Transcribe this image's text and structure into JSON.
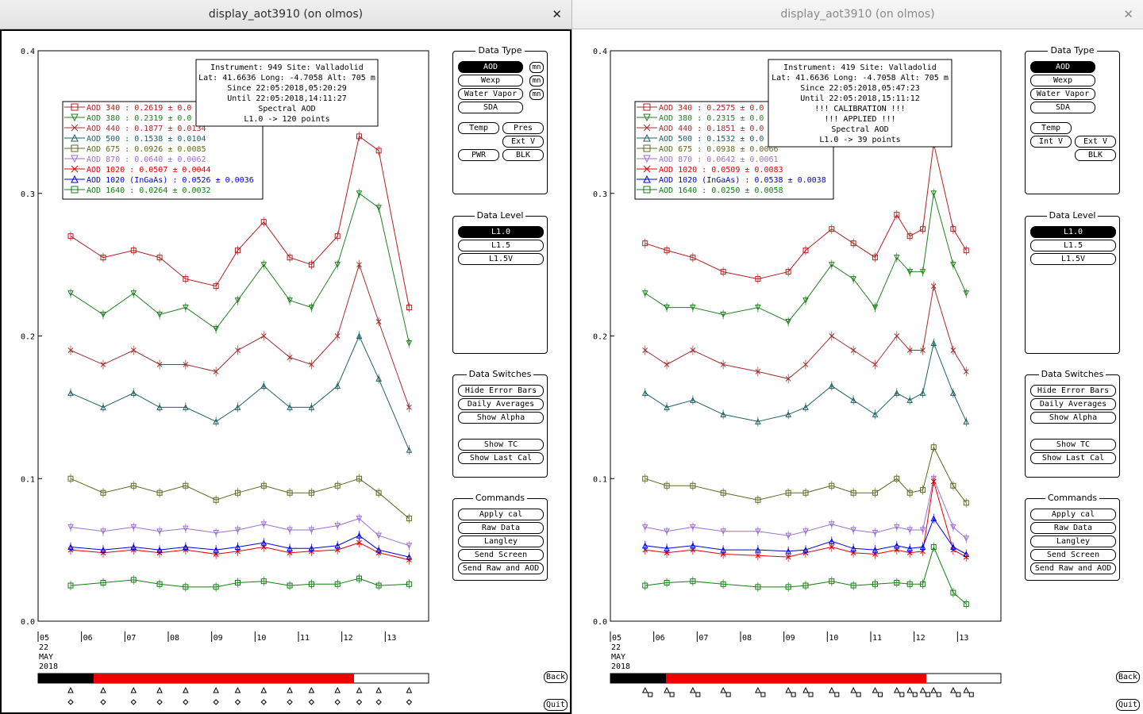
{
  "windows": [
    {
      "title": "display_aot3910 (on olmos)",
      "info_lines": [
        "Instrument: 949 Site: Valladolid",
        "Lat: 41.6636 Long: -4.7058 Alt: 705 m",
        "Since 22:05:2018,05:20:29",
        "Until 22:05:2018,14:11:27",
        "Spectral AOD",
        "L1.0 -> 120 points"
      ],
      "legend": [
        {
          "label": "AOD 340   : 0.2619 ± 0.0",
          "color": "#b02020",
          "marker": "square"
        },
        {
          "label": "AOD 380   : 0.2319 ± 0.0",
          "color": "#208020",
          "marker": "tri-down"
        },
        {
          "label": "AOD 440   : 0.1877 ± 0.0134",
          "color": "#a03030",
          "marker": "x"
        },
        {
          "label": "AOD 500   : 0.1538 ± 0.0104",
          "color": "#206060",
          "marker": "tri-up"
        },
        {
          "label": "AOD 675   : 0.0926 ± 0.0085",
          "color": "#5a6a20",
          "marker": "square"
        },
        {
          "label": "AOD 870   : 0.0640 ± 0.0062",
          "color": "#9a70d0",
          "marker": "tri-down"
        },
        {
          "label": "AOD 1020  : 0.0507 ± 0.0044",
          "color": "#e00000",
          "marker": "x"
        },
        {
          "label": "AOD 1020 (InGaAs)  : 0.0526 ± 0.0036",
          "color": "#0000e0",
          "marker": "tri-up"
        },
        {
          "label": "AOD 1640  : 0.0264 ± 0.0032",
          "color": "#108010",
          "marker": "square"
        }
      ],
      "mn_label": "mn"
    },
    {
      "title": "display_aot3910 (on olmos)",
      "info_lines": [
        "Instrument: 419 Site: Valladolid",
        "Lat: 41.6636 Long: -4.7058 Alt: 705 m",
        "Since 22:05:2018,05:47:23",
        "Until 22:05:2018,15:11:12",
        "!!! CALIBRATION !!!",
        "!!!  APPLIED  !!!",
        "Spectral AOD",
        "L1.0 -> 39 points"
      ],
      "legend": [
        {
          "label": "AOD 340   : 0.2575 ± 0.0",
          "color": "#b02020",
          "marker": "square"
        },
        {
          "label": "AOD 380   : 0.2315 ± 0.0",
          "color": "#208020",
          "marker": "tri-down"
        },
        {
          "label": "AOD 440   : 0.1851 ± 0.0",
          "color": "#a03030",
          "marker": "x"
        },
        {
          "label": "AOD 500   : 0.1532 ± 0.0",
          "color": "#206060",
          "marker": "tri-up"
        },
        {
          "label": "AOD 675   : 0.0938 ± 0.0066",
          "color": "#5a6a20",
          "marker": "square"
        },
        {
          "label": "AOD 870   : 0.0642 ± 0.0061",
          "color": "#9a70d0",
          "marker": "tri-down"
        },
        {
          "label": "AOD 1020  : 0.0509 ± 0.0083",
          "color": "#e00000",
          "marker": "x"
        },
        {
          "label": "AOD 1020 (InGaAs)  : 0.0538 ± 0.0038",
          "color": "#0000e0",
          "marker": "tri-up"
        },
        {
          "label": "AOD 1640  : 0.0250 ± 0.0058",
          "color": "#108010",
          "marker": "square"
        }
      ],
      "mn_label": ""
    }
  ],
  "axes": {
    "y_ticks": [
      "0.4",
      "0.3",
      "0.2",
      "0.1",
      "0.0"
    ],
    "x_ticks": [
      "05",
      "06",
      "07",
      "08",
      "09",
      "10",
      "11",
      "12",
      "13"
    ],
    "date_lines": [
      "22",
      "MAY",
      "2018"
    ]
  },
  "controls": {
    "data_type": {
      "title": "Data Type",
      "buttons": [
        "AOD",
        "Wexp",
        "Water Vapor",
        "SDA",
        "Temp",
        "Pres",
        "Ext V",
        "PWR",
        "BLK",
        "Int V"
      ]
    },
    "data_level": {
      "title": "Data Level",
      "buttons": [
        "L1.0",
        "L1.5",
        "L1.5V"
      ]
    },
    "data_switches": {
      "title": "Data Switches",
      "buttons": [
        "Hide Error Bars",
        "Daily Averages",
        "Show Alpha",
        "Show TC",
        "Show Last Cal"
      ]
    },
    "commands": {
      "title": "Commands",
      "buttons": [
        "Apply cal",
        "Raw Data",
        "Langley",
        "Send Screen",
        "Send Raw and AOD"
      ]
    },
    "back_label": "Back",
    "quit_label": "Quit"
  },
  "colors": {
    "selected_bg": "#000000",
    "timeline_red": "#ee0000"
  },
  "chart_data": [
    {
      "type": "line",
      "title": "Spectral AOD",
      "xlabel": "",
      "ylabel": "",
      "x_range_hours": [
        5,
        14
      ],
      "ylim": [
        0,
        0.4
      ],
      "grid": false,
      "x_hours": [
        5.75,
        6.5,
        7.2,
        7.8,
        8.4,
        9.1,
        9.6,
        10.2,
        10.8,
        11.3,
        11.9,
        12.4,
        12.85,
        13.55
      ],
      "series": [
        {
          "name": "AOD 340",
          "values": [
            0.27,
            0.255,
            0.26,
            0.255,
            0.24,
            0.235,
            0.26,
            0.28,
            0.255,
            0.25,
            0.27,
            0.34,
            0.33,
            0.22
          ]
        },
        {
          "name": "AOD 380",
          "values": [
            0.23,
            0.215,
            0.23,
            0.215,
            0.22,
            0.205,
            0.225,
            0.25,
            0.225,
            0.22,
            0.25,
            0.3,
            0.29,
            0.195
          ]
        },
        {
          "name": "AOD 440",
          "values": [
            0.19,
            0.18,
            0.19,
            0.18,
            0.18,
            0.175,
            0.19,
            0.2,
            0.185,
            0.18,
            0.2,
            0.25,
            0.21,
            0.15
          ]
        },
        {
          "name": "AOD 500",
          "values": [
            0.16,
            0.15,
            0.16,
            0.15,
            0.15,
            0.14,
            0.15,
            0.165,
            0.15,
            0.15,
            0.165,
            0.2,
            0.17,
            0.12
          ]
        },
        {
          "name": "AOD 675",
          "values": [
            0.1,
            0.09,
            0.095,
            0.09,
            0.095,
            0.085,
            0.09,
            0.095,
            0.09,
            0.09,
            0.095,
            0.1,
            0.09,
            0.072
          ]
        },
        {
          "name": "AOD 870",
          "values": [
            0.066,
            0.063,
            0.066,
            0.063,
            0.065,
            0.062,
            0.064,
            0.068,
            0.064,
            0.064,
            0.067,
            0.072,
            0.06,
            0.053
          ]
        },
        {
          "name": "AOD 1020",
          "values": [
            0.05,
            0.048,
            0.05,
            0.048,
            0.05,
            0.047,
            0.049,
            0.052,
            0.048,
            0.049,
            0.05,
            0.055,
            0.048,
            0.043
          ]
        },
        {
          "name": "AOD 1020 (InGaAs)",
          "values": [
            0.052,
            0.05,
            0.052,
            0.05,
            0.052,
            0.05,
            0.052,
            0.055,
            0.051,
            0.051,
            0.053,
            0.06,
            0.05,
            0.045
          ]
        },
        {
          "name": "AOD 1640",
          "values": [
            0.025,
            0.027,
            0.029,
            0.026,
            0.024,
            0.024,
            0.027,
            0.028,
            0.025,
            0.026,
            0.026,
            0.03,
            0.025,
            0.026
          ]
        }
      ]
    },
    {
      "type": "line",
      "title": "Spectral AOD",
      "xlabel": "",
      "ylabel": "",
      "x_range_hours": [
        5,
        14
      ],
      "ylim": [
        0,
        0.4
      ],
      "grid": false,
      "x_hours": [
        5.8,
        6.3,
        6.9,
        7.6,
        8.4,
        9.1,
        9.5,
        10.1,
        10.6,
        11.1,
        11.6,
        11.9,
        12.2,
        12.45,
        12.9,
        13.2
      ],
      "series": [
        {
          "name": "AOD 340",
          "values": [
            0.265,
            0.26,
            0.255,
            0.245,
            0.24,
            0.245,
            0.26,
            0.275,
            0.265,
            0.255,
            0.285,
            0.27,
            0.275,
            0.335,
            0.275,
            0.26
          ]
        },
        {
          "name": "AOD 380",
          "values": [
            0.23,
            0.22,
            0.22,
            0.215,
            0.22,
            0.21,
            0.225,
            0.25,
            0.24,
            0.22,
            0.255,
            0.245,
            0.245,
            0.3,
            0.25,
            0.23
          ]
        },
        {
          "name": "AOD 440",
          "values": [
            0.19,
            0.18,
            0.19,
            0.18,
            0.175,
            0.17,
            0.18,
            0.2,
            0.19,
            0.18,
            0.2,
            0.19,
            0.19,
            0.235,
            0.19,
            0.175
          ]
        },
        {
          "name": "AOD 500",
          "values": [
            0.16,
            0.15,
            0.155,
            0.145,
            0.14,
            0.145,
            0.15,
            0.165,
            0.155,
            0.145,
            0.16,
            0.155,
            0.16,
            0.195,
            0.16,
            0.14
          ]
        },
        {
          "name": "AOD 675",
          "values": [
            0.1,
            0.095,
            0.095,
            0.09,
            0.085,
            0.09,
            0.09,
            0.095,
            0.09,
            0.09,
            0.1,
            0.09,
            0.092,
            0.122,
            0.095,
            0.083
          ]
        },
        {
          "name": "AOD 870",
          "values": [
            0.066,
            0.063,
            0.066,
            0.063,
            0.063,
            0.06,
            0.063,
            0.068,
            0.064,
            0.062,
            0.066,
            0.064,
            0.064,
            0.1,
            0.066,
            0.058
          ]
        },
        {
          "name": "AOD 1020",
          "values": [
            0.05,
            0.048,
            0.05,
            0.047,
            0.046,
            0.045,
            0.048,
            0.052,
            0.048,
            0.047,
            0.05,
            0.048,
            0.049,
            0.098,
            0.05,
            0.045
          ]
        },
        {
          "name": "AOD 1020 (InGaAs)",
          "values": [
            0.053,
            0.051,
            0.053,
            0.05,
            0.05,
            0.049,
            0.05,
            0.056,
            0.051,
            0.05,
            0.053,
            0.051,
            0.052,
            0.072,
            0.052,
            0.047
          ]
        },
        {
          "name": "AOD 1640",
          "values": [
            0.025,
            0.027,
            0.028,
            0.026,
            0.024,
            0.024,
            0.025,
            0.028,
            0.025,
            0.026,
            0.027,
            0.026,
            0.026,
            0.052,
            0.02,
            0.012
          ]
        }
      ]
    }
  ]
}
